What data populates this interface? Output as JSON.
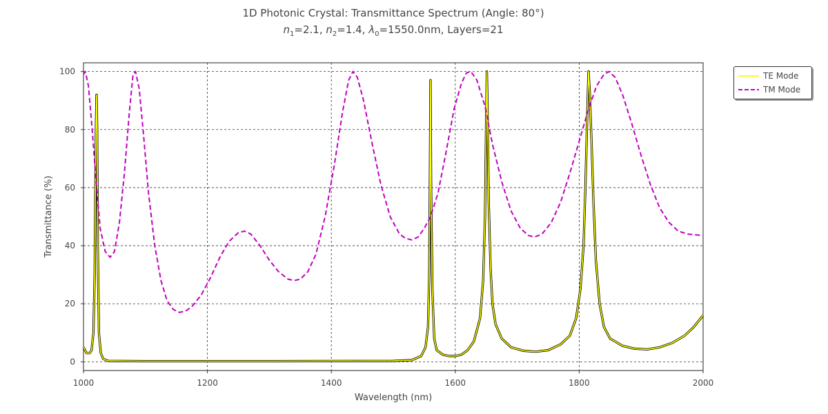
{
  "title": {
    "line1": "1D Photonic Crystal: Transmittance Spectrum (Angle: 80°)",
    "line2_parts": [
      {
        "t": "n",
        "style": "italic"
      },
      {
        "t": "1",
        "style": "sub"
      },
      {
        "t": "=2.1, ",
        "style": ""
      },
      {
        "t": "n",
        "style": "italic"
      },
      {
        "t": "2",
        "style": "sub"
      },
      {
        "t": "=1.4, ",
        "style": ""
      },
      {
        "t": "λ",
        "style": "italic"
      },
      {
        "t": "0",
        "style": "sub"
      },
      {
        "t": "=1550.0nm, Layers=21",
        "style": ""
      }
    ]
  },
  "chart_data": {
    "type": "line",
    "title": "1D Photonic Crystal: Transmittance Spectrum (Angle: 80°)",
    "subtitle": "n1=2.1, n2=1.4, λ0=1550.0nm, Layers=21",
    "xlabel": "Wavelength (nm)",
    "ylabel": "Transmittance (%)",
    "xlim": [
      1000,
      2000
    ],
    "ylim": [
      -3,
      103
    ],
    "xticks": [
      1000,
      1200,
      1400,
      1600,
      1800,
      2000
    ],
    "yticks": [
      0,
      20,
      40,
      60,
      80,
      100
    ],
    "grid": true,
    "legend_position": "upper right, outside plot",
    "series": [
      {
        "name": "TE Mode",
        "color": "#ffff00",
        "outline_color": "#000000",
        "linestyle": "solid",
        "points": [
          [
            1000,
            5
          ],
          [
            1005,
            3
          ],
          [
            1010,
            3
          ],
          [
            1013,
            4
          ],
          [
            1016,
            10
          ],
          [
            1018,
            30
          ],
          [
            1019,
            55
          ],
          [
            1020,
            80
          ],
          [
            1021,
            92
          ],
          [
            1022,
            80
          ],
          [
            1023,
            40
          ],
          [
            1025,
            10
          ],
          [
            1028,
            3
          ],
          [
            1032,
            1
          ],
          [
            1040,
            0.3
          ],
          [
            1100,
            0.2
          ],
          [
            1300,
            0.2
          ],
          [
            1500,
            0.3
          ],
          [
            1530,
            0.6
          ],
          [
            1545,
            2
          ],
          [
            1552,
            5
          ],
          [
            1556,
            12
          ],
          [
            1558,
            30
          ],
          [
            1559,
            60
          ],
          [
            1560,
            97
          ],
          [
            1561,
            60
          ],
          [
            1563,
            25
          ],
          [
            1566,
            8
          ],
          [
            1570,
            4
          ],
          [
            1580,
            2.5
          ],
          [
            1590,
            2
          ],
          [
            1600,
            2
          ],
          [
            1610,
            2.5
          ],
          [
            1620,
            4
          ],
          [
            1630,
            7
          ],
          [
            1640,
            15
          ],
          [
            1645,
            28
          ],
          [
            1648,
            50
          ],
          [
            1650,
            85
          ],
          [
            1651,
            100
          ],
          [
            1652,
            88
          ],
          [
            1654,
            55
          ],
          [
            1657,
            32
          ],
          [
            1660,
            20
          ],
          [
            1665,
            13
          ],
          [
            1675,
            8
          ],
          [
            1690,
            5
          ],
          [
            1710,
            3.8
          ],
          [
            1730,
            3.5
          ],
          [
            1750,
            4
          ],
          [
            1770,
            6
          ],
          [
            1785,
            9
          ],
          [
            1795,
            15
          ],
          [
            1802,
            25
          ],
          [
            1807,
            40
          ],
          [
            1810,
            60
          ],
          [
            1813,
            85
          ],
          [
            1815,
            100
          ],
          [
            1817,
            93
          ],
          [
            1820,
            75
          ],
          [
            1823,
            55
          ],
          [
            1827,
            35
          ],
          [
            1833,
            20
          ],
          [
            1840,
            12
          ],
          [
            1850,
            8
          ],
          [
            1870,
            5.5
          ],
          [
            1890,
            4.5
          ],
          [
            1910,
            4.3
          ],
          [
            1930,
            5
          ],
          [
            1950,
            6.5
          ],
          [
            1970,
            9
          ],
          [
            1985,
            12
          ],
          [
            2000,
            16
          ]
        ]
      },
      {
        "name": "TM Mode",
        "color": "#c000c0",
        "linestyle": "dashed",
        "points": [
          [
            1000,
            99
          ],
          [
            1003,
            100
          ],
          [
            1008,
            95
          ],
          [
            1014,
            80
          ],
          [
            1020,
            63
          ],
          [
            1027,
            46
          ],
          [
            1035,
            38
          ],
          [
            1043,
            36
          ],
          [
            1050,
            38
          ],
          [
            1058,
            48
          ],
          [
            1066,
            65
          ],
          [
            1074,
            86
          ],
          [
            1080,
            99
          ],
          [
            1084,
            100
          ],
          [
            1090,
            94
          ],
          [
            1097,
            78
          ],
          [
            1105,
            58
          ],
          [
            1115,
            40
          ],
          [
            1125,
            28
          ],
          [
            1135,
            21
          ],
          [
            1145,
            18
          ],
          [
            1155,
            17
          ],
          [
            1165,
            17.5
          ],
          [
            1175,
            19
          ],
          [
            1190,
            23
          ],
          [
            1205,
            29
          ],
          [
            1220,
            36
          ],
          [
            1235,
            41.5
          ],
          [
            1250,
            44.5
          ],
          [
            1260,
            45
          ],
          [
            1270,
            44
          ],
          [
            1285,
            40
          ],
          [
            1300,
            35
          ],
          [
            1315,
            31
          ],
          [
            1330,
            28.5
          ],
          [
            1340,
            28
          ],
          [
            1350,
            28.5
          ],
          [
            1362,
            31
          ],
          [
            1375,
            37
          ],
          [
            1390,
            50
          ],
          [
            1405,
            68
          ],
          [
            1418,
            86
          ],
          [
            1428,
            97
          ],
          [
            1435,
            100
          ],
          [
            1442,
            98
          ],
          [
            1452,
            90
          ],
          [
            1465,
            76
          ],
          [
            1480,
            61
          ],
          [
            1495,
            50
          ],
          [
            1510,
            44
          ],
          [
            1520,
            42.5
          ],
          [
            1530,
            42
          ],
          [
            1540,
            43
          ],
          [
            1550,
            46
          ],
          [
            1560,
            50
          ],
          [
            1572,
            58
          ],
          [
            1585,
            72
          ],
          [
            1598,
            87
          ],
          [
            1610,
            96
          ],
          [
            1618,
            99.5
          ],
          [
            1625,
            100
          ],
          [
            1635,
            97
          ],
          [
            1648,
            88
          ],
          [
            1660,
            75
          ],
          [
            1675,
            62
          ],
          [
            1690,
            52
          ],
          [
            1705,
            46
          ],
          [
            1718,
            43.5
          ],
          [
            1728,
            43
          ],
          [
            1740,
            44
          ],
          [
            1755,
            48
          ],
          [
            1770,
            55
          ],
          [
            1785,
            65
          ],
          [
            1800,
            76
          ],
          [
            1815,
            87
          ],
          [
            1828,
            95
          ],
          [
            1840,
            99
          ],
          [
            1848,
            100
          ],
          [
            1858,
            98
          ],
          [
            1870,
            92
          ],
          [
            1885,
            82
          ],
          [
            1900,
            71
          ],
          [
            1915,
            61
          ],
          [
            1930,
            53
          ],
          [
            1945,
            48
          ],
          [
            1960,
            45
          ],
          [
            1975,
            44
          ],
          [
            1990,
            43.7
          ],
          [
            2000,
            43.5
          ]
        ]
      }
    ]
  }
}
